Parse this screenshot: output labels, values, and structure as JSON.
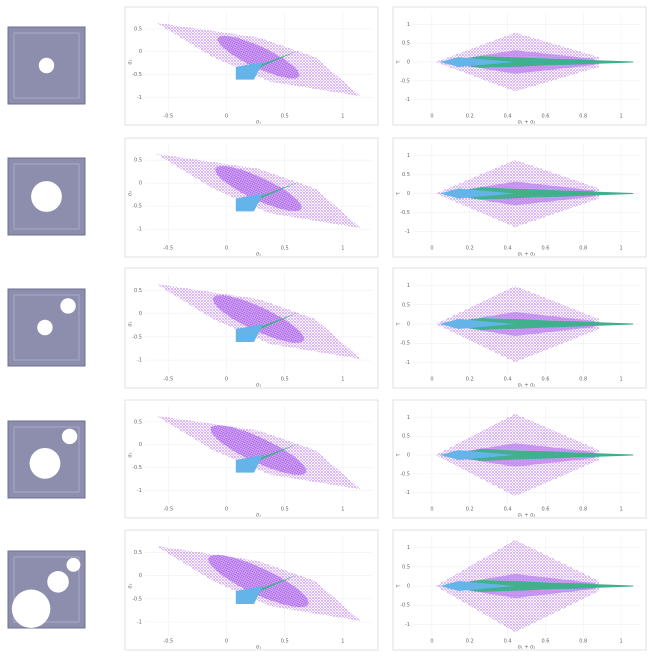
{
  "left_axes": {
    "xlabel": "σ₁",
    "ylabel": "σ₂",
    "xlim": [
      -0.7,
      1.25
    ],
    "ylim": [
      -1.3,
      0.85
    ],
    "xticks": [
      -0.5,
      0,
      0.5,
      1
    ],
    "yticks": [
      0.5,
      0,
      -0.5,
      -1
    ]
  },
  "right_axes": {
    "xlabel": "σ₁ + σ₂",
    "ylabel": "τ",
    "xlim": [
      -0.1,
      1.1
    ],
    "ylim": [
      -1.3,
      1.3
    ],
    "xticks": [
      0,
      0.2,
      0.4,
      0.6,
      0.8,
      1
    ],
    "yticks": [
      1,
      0.5,
      0,
      -0.5,
      -1
    ]
  }
}
